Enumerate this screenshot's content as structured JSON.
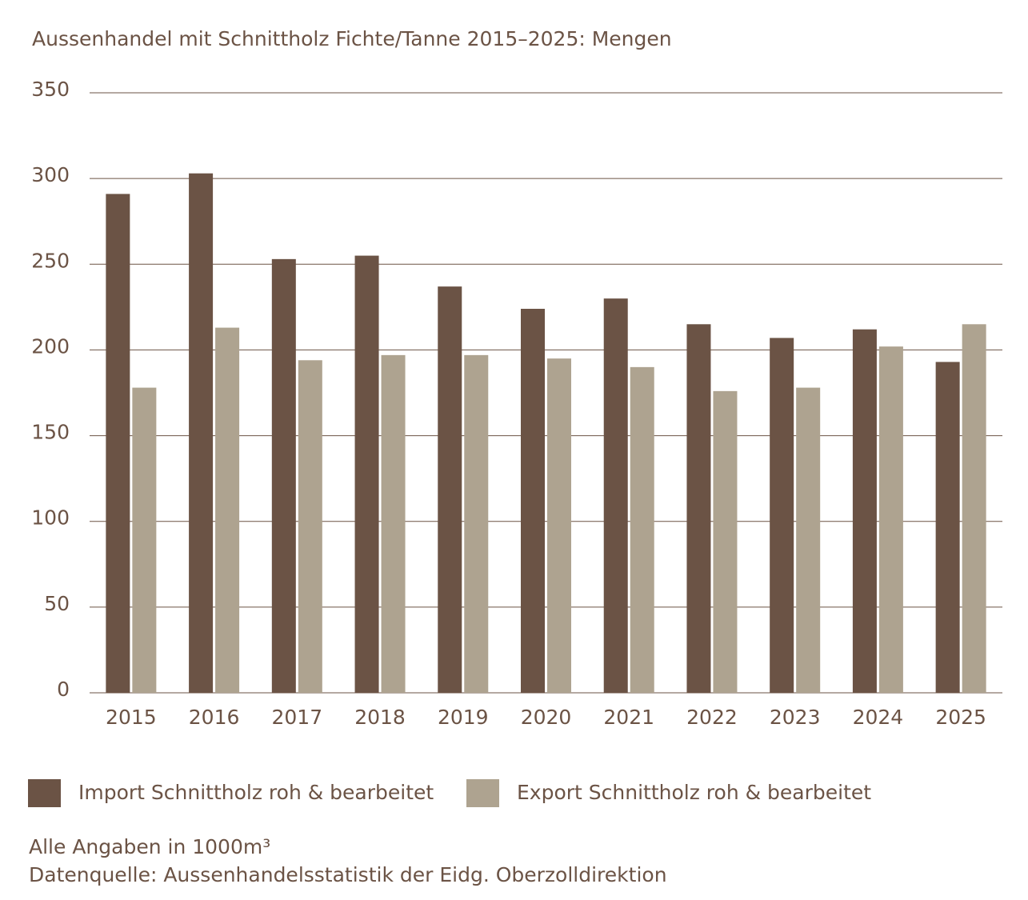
{
  "chart_data": {
    "type": "bar",
    "title": "Aussenhandel mit Schnittholz Fichte/Tanne 2015–2025: Mengen",
    "categories": [
      "2015",
      "2016",
      "2017",
      "2018",
      "2019",
      "2020",
      "2021",
      "2022",
      "2023",
      "2024",
      "2025"
    ],
    "series": [
      {
        "name": "Import Schnittholz roh & bearbeitet",
        "color": "#6b5345",
        "values": [
          291,
          303,
          253,
          255,
          237,
          224,
          230,
          215,
          207,
          212,
          193
        ]
      },
      {
        "name": "Export Schnittholz roh & bearbeitet",
        "color": "#aea390",
        "values": [
          178,
          213,
          194,
          197,
          197,
          195,
          190,
          176,
          178,
          202,
          215
        ]
      }
    ],
    "ylim": [
      0,
      350
    ],
    "yticks": [
      0,
      50,
      100,
      150,
      200,
      250,
      300,
      350
    ],
    "grid": true,
    "notes": [
      "Alle Angaben in 1000m³",
      "Datenquelle: Aussenhandelsstatistik der Eidg. Oberzolldirektion"
    ]
  }
}
